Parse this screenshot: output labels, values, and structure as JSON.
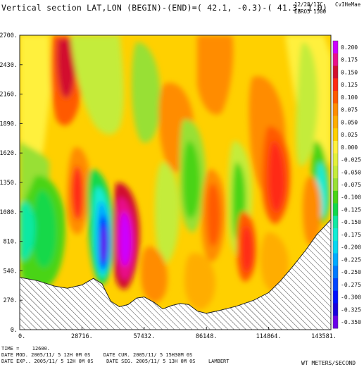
{
  "header": {
    "title": "Vertical section LAT,LON (BEGIN)-(END)=( 42.1,  -0.3)-( 41.3,   1.0)",
    "date_stamp": "12/28/17C",
    "user_stamp": "CvIHeMae",
    "experiment_stamp": "EBRO5 1500"
  },
  "footer": {
    "time_label": "TIME =",
    "time_value": "12600.",
    "date_mod": "DATE MOD. 2005/11/ 5   12H 0M 0S",
    "date_cur": "DATE CUR. 2005/11/ 5   15H30M 0S",
    "date_exp": "DATE EXP.. 2005/11/ 5   12H 0M 0S",
    "date_seg": "DATE SEG. 2005/11/ 5   13H 0M 0S",
    "projection": "LAMBERT",
    "units": "WT METERS/SECOND"
  },
  "chart_data": {
    "type": "heatmap",
    "title": "Vertical section LAT,LON (BEGIN)-(END)=( 42.1,  -0.3)-( 41.3,   1.0)",
    "xlabel": "",
    "ylabel": "",
    "variable_units": "WT METERS/SECOND",
    "xlim": [
      0,
      143581
    ],
    "ylim": [
      0,
      2700
    ],
    "x_ticks": [
      0,
      28716,
      57432,
      86148,
      114864,
      143581
    ],
    "x_tick_labels": [
      "0.",
      "28716.",
      "57432.",
      "86148.",
      "114864.",
      "143581."
    ],
    "y_ticks": [
      0,
      270,
      540,
      810,
      1080,
      1350,
      1620,
      1890,
      2160,
      2430,
      2700
    ],
    "y_tick_labels": [
      "0.",
      "270.",
      "540.",
      "810.",
      "1080.",
      "1350.",
      "1620.",
      "1890.",
      "2160.",
      "2430.",
      "2700."
    ],
    "colorbar": {
      "position": "right",
      "levels": [
        0.2,
        0.175,
        0.15,
        0.125,
        0.1,
        0.075,
        0.05,
        0.025,
        0.0,
        -0.025,
        -0.05,
        -0.075,
        -0.1,
        -0.125,
        -0.15,
        -0.175,
        -0.2,
        -0.225,
        -0.25,
        -0.275,
        -0.3,
        -0.325,
        -0.35
      ],
      "labels": [
        "0.200",
        "0.175",
        "0.150",
        "0.125",
        "0.100",
        "0.075",
        "0.050",
        "0.025",
        "0.000",
        "-0.025",
        "-0.050",
        "-0.075",
        "-0.100",
        "-0.125",
        "-0.150",
        "-0.175",
        "-0.200",
        "-0.225",
        "-0.250",
        "-0.275",
        "-0.300",
        "-0.325",
        "-0.350"
      ],
      "colors": [
        "#cc00ff",
        "#e8108a",
        "#d2102e",
        "#ff2a14",
        "#ff5a00",
        "#ff8c00",
        "#ffad00",
        "#ffd000",
        "#fff03c",
        "#e2f03a",
        "#c4ec3a",
        "#98e036",
        "#4ad416",
        "#12d84a",
        "#10e8a2",
        "#12ecd4",
        "#06d6f0",
        "#00aaff",
        "#007aff",
        "#0044ff",
        "#0010ff",
        "#1a00dc",
        "#6a00ea"
      ]
    },
    "terrain": {
      "description_free": true,
      "x": [
        0,
        8000,
        16000,
        22000,
        28716,
        34000,
        38000,
        42000,
        46000,
        50000,
        54000,
        57432,
        62000,
        66000,
        70000,
        74000,
        78000,
        82000,
        86148,
        92000,
        100000,
        108000,
        114864,
        120000,
        126000,
        132000,
        137000,
        143581
      ],
      "z": [
        480,
        450,
        400,
        380,
        410,
        470,
        420,
        260,
        210,
        230,
        290,
        300,
        250,
        190,
        220,
        240,
        230,
        170,
        150,
        175,
        215,
        270,
        340,
        440,
        580,
        730,
        870,
        1010
      ]
    }
  }
}
